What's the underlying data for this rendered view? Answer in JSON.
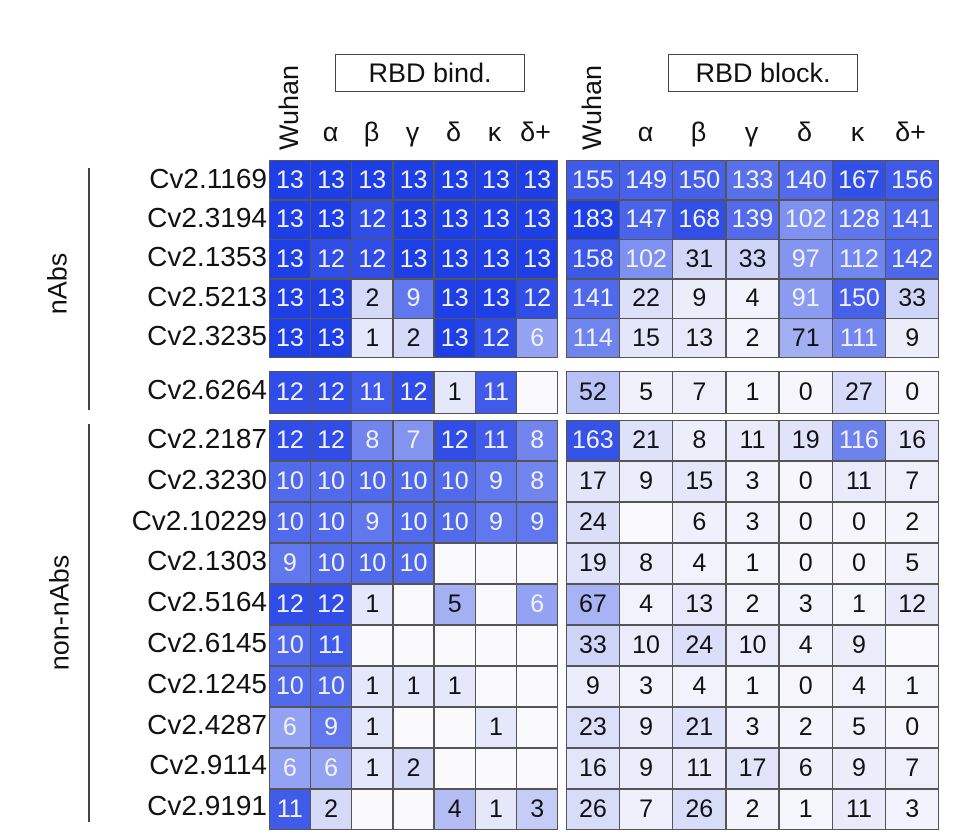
{
  "chart_data": {
    "type": "heatmap",
    "title": "",
    "panels": [
      {
        "name": "RBD bind.",
        "max_value": 13
      },
      {
        "name": "RBD block.",
        "max_value": 183
      }
    ],
    "columns": [
      "Wuhan",
      "α",
      "β",
      "γ",
      "δ",
      "κ",
      "δ+"
    ],
    "groups": [
      {
        "label": "nAbs",
        "rows": [
          "Cv2.1169",
          "Cv2.3194",
          "Cv2.1353",
          "Cv2.5213",
          "Cv2.3235",
          "Cv2.6264"
        ]
      },
      {
        "label": "non-nAbs",
        "rows": [
          "Cv2.2187",
          "Cv2.3230",
          "Cv2.10229",
          "Cv2.1303",
          "Cv2.5164",
          "Cv2.6145",
          "Cv2.1245",
          "Cv2.4287",
          "Cv2.9114",
          "Cv2.9191"
        ]
      }
    ],
    "rows": [
      {
        "id": "Cv2.1169",
        "group": "nAbs",
        "bind": [
          13,
          13,
          13,
          13,
          13,
          13,
          13
        ],
        "block": [
          155,
          149,
          150,
          133,
          140,
          167,
          156
        ]
      },
      {
        "id": "Cv2.3194",
        "group": "nAbs",
        "bind": [
          13,
          13,
          12,
          13,
          13,
          13,
          13
        ],
        "block": [
          183,
          147,
          168,
          139,
          102,
          128,
          141
        ]
      },
      {
        "id": "Cv2.1353",
        "group": "nAbs",
        "bind": [
          13,
          12,
          12,
          13,
          13,
          13,
          13
        ],
        "block": [
          158,
          102,
          31,
          33,
          97,
          112,
          142
        ]
      },
      {
        "id": "Cv2.5213",
        "group": "nAbs",
        "bind": [
          13,
          13,
          2,
          9,
          13,
          13,
          12
        ],
        "block": [
          141,
          22,
          9,
          4,
          91,
          150,
          33
        ]
      },
      {
        "id": "Cv2.3235",
        "group": "nAbs",
        "bind": [
          13,
          13,
          1,
          2,
          13,
          12,
          6
        ],
        "block": [
          114,
          15,
          13,
          2,
          71,
          111,
          9
        ]
      },
      {
        "id": "Cv2.6264",
        "group": "nAbs",
        "bind": [
          12,
          12,
          11,
          12,
          1,
          11,
          null
        ],
        "block": [
          52,
          5,
          7,
          1,
          0,
          27,
          0
        ]
      },
      {
        "id": "Cv2.2187",
        "group": "non-nAbs",
        "bind": [
          12,
          12,
          8,
          7,
          12,
          11,
          8
        ],
        "block": [
          163,
          21,
          8,
          11,
          19,
          116,
          16
        ]
      },
      {
        "id": "Cv2.3230",
        "group": "non-nAbs",
        "bind": [
          10,
          10,
          10,
          10,
          10,
          9,
          8
        ],
        "block": [
          17,
          9,
          15,
          3,
          0,
          11,
          7
        ]
      },
      {
        "id": "Cv2.10229",
        "group": "non-nAbs",
        "bind": [
          10,
          10,
          9,
          10,
          10,
          9,
          9
        ],
        "block": [
          24,
          null,
          6,
          3,
          0,
          0,
          2
        ]
      },
      {
        "id": "Cv2.1303",
        "group": "non-nAbs",
        "bind": [
          9,
          10,
          10,
          10,
          null,
          null,
          null
        ],
        "block": [
          19,
          8,
          4,
          1,
          0,
          0,
          5
        ]
      },
      {
        "id": "Cv2.5164",
        "group": "non-nAbs",
        "bind": [
          12,
          12,
          1,
          null,
          5,
          null,
          6
        ],
        "block": [
          67,
          4,
          13,
          2,
          3,
          1,
          12
        ]
      },
      {
        "id": "Cv2.6145",
        "group": "non-nAbs",
        "bind": [
          10,
          11,
          null,
          null,
          null,
          null,
          null
        ],
        "block": [
          33,
          10,
          24,
          10,
          4,
          9,
          null
        ]
      },
      {
        "id": "Cv2.1245",
        "group": "non-nAbs",
        "bind": [
          10,
          10,
          1,
          1,
          1,
          null,
          null
        ],
        "block": [
          9,
          3,
          4,
          1,
          0,
          4,
          1
        ]
      },
      {
        "id": "Cv2.4287",
        "group": "non-nAbs",
        "bind": [
          6,
          9,
          1,
          null,
          null,
          1,
          null
        ],
        "block": [
          23,
          9,
          21,
          3,
          2,
          5,
          0
        ]
      },
      {
        "id": "Cv2.9114",
        "group": "non-nAbs",
        "bind": [
          6,
          6,
          1,
          2,
          null,
          null,
          null
        ],
        "block": [
          16,
          9,
          11,
          17,
          6,
          9,
          7
        ]
      },
      {
        "id": "Cv2.9191",
        "group": "non-nAbs",
        "bind": [
          11,
          2,
          null,
          null,
          4,
          1,
          3
        ],
        "block": [
          26,
          7,
          26,
          2,
          1,
          11,
          3
        ]
      }
    ],
    "colors": {
      "high": "#1f3fe6",
      "low": "#f6f6fc",
      "border": "#555555"
    }
  },
  "labels": {
    "bind_title": "RBD bind.",
    "block_title": "RBD block.",
    "group_nabs": "nAbs",
    "group_non_nabs": "non-nAbs"
  }
}
